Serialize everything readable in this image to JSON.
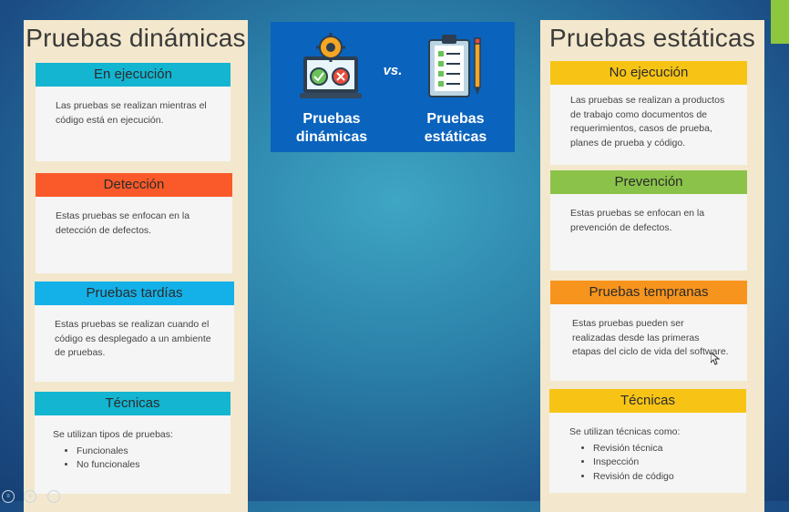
{
  "left": {
    "title": "Pruebas dinámicas",
    "cards": [
      {
        "head": "En ejecución",
        "color": "#13b5d1",
        "text": "Las pruebas se realizan mientras el código está en ejecución."
      },
      {
        "head": "Detección",
        "color": "#fa5a2a",
        "text": "Estas pruebas se enfocan en la detección de defectos."
      },
      {
        "head": "Pruebas tardías",
        "color": "#14b0e8",
        "text": "Estas pruebas se realizan cuando el código es desplegado a un ambiente de pruebas."
      },
      {
        "head": "Técnicas",
        "color": "#13b5d1",
        "text": "Se utilizan tipos de pruebas:",
        "items": [
          "Funcionales",
          "No funcionales"
        ]
      }
    ]
  },
  "right": {
    "title": "Pruebas estáticas",
    "cards": [
      {
        "head": "No ejecución",
        "color": "#f7c416",
        "text": "Las pruebas se realizan a productos de trabajo como documentos de requerimientos, casos de prueba, planes de prueba y código."
      },
      {
        "head": "Prevención",
        "color": "#8bc34a",
        "text": "Estas pruebas se enfocan en la prevención de defectos."
      },
      {
        "head": "Pruebas tempranas",
        "color": "#f7941d",
        "text": "Estas pruebas pueden ser realizadas desde las primeras etapas del ciclo de vida del software."
      },
      {
        "head": "Técnicas",
        "color": "#f7c416",
        "text": "Se utilizan técnicas como:",
        "items": [
          "Revisión técnica",
          "Inspección",
          "Revisión de código"
        ]
      }
    ]
  },
  "center": {
    "vs": "vs.",
    "left_label_line1": "Pruebas",
    "left_label_line2": "dinámicas",
    "right_label_line1": "Pruebas",
    "right_label_line2": "estáticas",
    "left_icon": "laptop-gear-icon",
    "right_icon": "clipboard-checklist-icon"
  },
  "colors": {
    "panel_bg": "#f3e8cd",
    "center_box": "#0a63bd",
    "corner_accent": "#8dc63f"
  }
}
